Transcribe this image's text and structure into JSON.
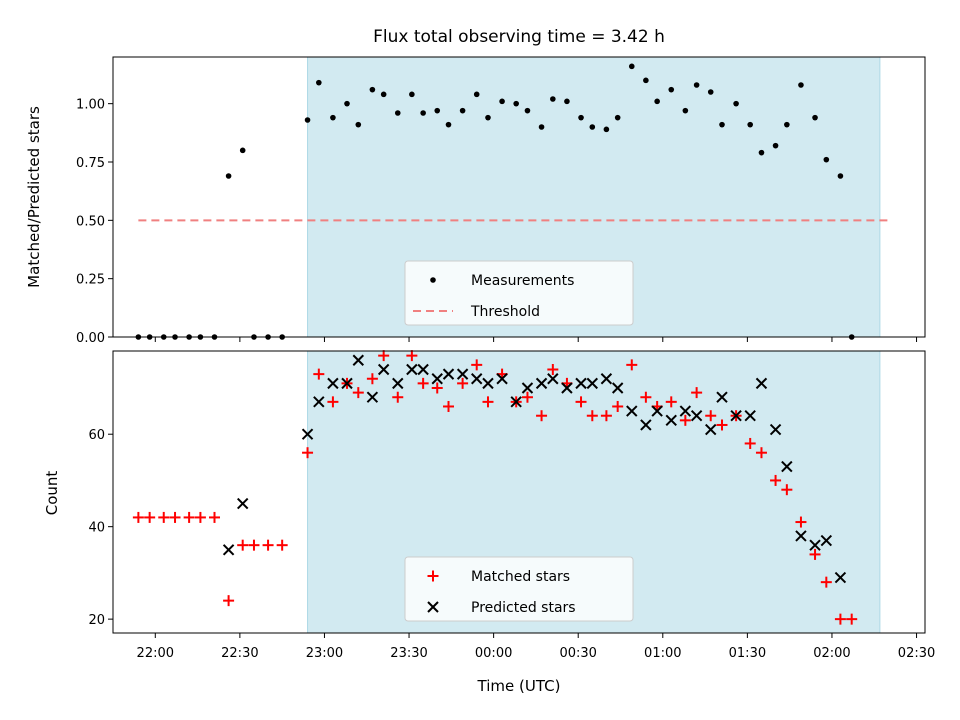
{
  "chart_data": [
    {
      "type": "scatter",
      "title": "Flux total observing time = 3.42 h",
      "xlabel": "",
      "ylabel": "Matched/Predicted stars",
      "xlim": [
        "21:45",
        "02:33"
      ],
      "ylim": [
        0,
        1.2
      ],
      "yticks": [
        "0.00",
        "0.25",
        "0.50",
        "0.75",
        "1.00"
      ],
      "shaded_region": [
        "22:54",
        "02:17"
      ],
      "shade_color": "#add8e6",
      "legend_position": "lower-center",
      "series": [
        {
          "name": "Measurements",
          "marker": "dot",
          "color": "#000000",
          "points": [
            [
              "21:54",
              0
            ],
            [
              "21:58",
              0
            ],
            [
              "22:03",
              0
            ],
            [
              "22:07",
              0
            ],
            [
              "22:12",
              0
            ],
            [
              "22:16",
              0
            ],
            [
              "22:21",
              0
            ],
            [
              "22:26",
              0.69
            ],
            [
              "22:31",
              0.8
            ],
            [
              "22:35",
              0
            ],
            [
              "22:40",
              0
            ],
            [
              "22:45",
              0
            ],
            [
              "22:54",
              0.93
            ],
            [
              "22:58",
              1.09
            ],
            [
              "23:03",
              0.94
            ],
            [
              "23:08",
              1.0
            ],
            [
              "23:12",
              0.91
            ],
            [
              "23:17",
              1.06
            ],
            [
              "23:21",
              1.04
            ],
            [
              "23:26",
              0.96
            ],
            [
              "23:31",
              1.04
            ],
            [
              "23:35",
              0.96
            ],
            [
              "23:40",
              0.97
            ],
            [
              "23:44",
              0.91
            ],
            [
              "23:49",
              0.97
            ],
            [
              "23:54",
              1.04
            ],
            [
              "23:58",
              0.94
            ],
            [
              "00:03",
              1.01
            ],
            [
              "00:08",
              1.0
            ],
            [
              "00:12",
              0.97
            ],
            [
              "00:17",
              0.9
            ],
            [
              "00:21",
              1.02
            ],
            [
              "00:26",
              1.01
            ],
            [
              "00:31",
              0.94
            ],
            [
              "00:35",
              0.9
            ],
            [
              "00:40",
              0.89
            ],
            [
              "00:44",
              0.94
            ],
            [
              "00:49",
              1.16
            ],
            [
              "00:54",
              1.1
            ],
            [
              "00:58",
              1.01
            ],
            [
              "01:03",
              1.06
            ],
            [
              "01:08",
              0.97
            ],
            [
              "01:12",
              1.08
            ],
            [
              "01:17",
              1.05
            ],
            [
              "01:21",
              0.91
            ],
            [
              "01:26",
              1.0
            ],
            [
              "01:31",
              0.91
            ],
            [
              "01:35",
              0.79
            ],
            [
              "01:40",
              0.82
            ],
            [
              "01:44",
              0.91
            ],
            [
              "01:49",
              1.08
            ],
            [
              "01:54",
              0.94
            ],
            [
              "01:58",
              0.76
            ],
            [
              "02:03",
              0.69
            ],
            [
              "02:07",
              0
            ]
          ]
        },
        {
          "name": "Threshold",
          "marker": "dashed-line",
          "color": "#f08080",
          "points": [
            [
              "21:54",
              0.5
            ],
            [
              "02:21",
              0.5
            ]
          ]
        }
      ]
    },
    {
      "type": "scatter",
      "title": "",
      "xlabel": "Time (UTC)",
      "ylabel": "Count",
      "xlim": [
        "21:45",
        "02:33"
      ],
      "ylim": [
        17,
        78
      ],
      "xticks": [
        "22:00",
        "22:30",
        "23:00",
        "23:30",
        "00:00",
        "00:30",
        "01:00",
        "01:30",
        "02:00",
        "02:30"
      ],
      "yticks": [
        "20",
        "40",
        "60"
      ],
      "shaded_region": [
        "22:54",
        "02:17"
      ],
      "shade_color": "#add8e6",
      "legend_position": "lower-center",
      "series": [
        {
          "name": "Matched stars",
          "marker": "plus",
          "color": "#ff0000",
          "points": [
            [
              "21:54",
              42
            ],
            [
              "21:58",
              42
            ],
            [
              "22:03",
              42
            ],
            [
              "22:07",
              42
            ],
            [
              "22:12",
              42
            ],
            [
              "22:16",
              42
            ],
            [
              "22:21",
              42
            ],
            [
              "22:26",
              24
            ],
            [
              "22:31",
              36
            ],
            [
              "22:35",
              36
            ],
            [
              "22:40",
              36
            ],
            [
              "22:45",
              36
            ],
            [
              "22:54",
              56
            ],
            [
              "22:58",
              73
            ],
            [
              "23:03",
              67
            ],
            [
              "23:08",
              71
            ],
            [
              "23:12",
              69
            ],
            [
              "23:17",
              72
            ],
            [
              "23:21",
              77
            ],
            [
              "23:26",
              68
            ],
            [
              "23:31",
              77
            ],
            [
              "23:35",
              71
            ],
            [
              "23:40",
              70
            ],
            [
              "23:44",
              66
            ],
            [
              "23:49",
              71
            ],
            [
              "23:54",
              75
            ],
            [
              "23:58",
              67
            ],
            [
              "00:03",
              73
            ],
            [
              "00:08",
              67
            ],
            [
              "00:12",
              68
            ],
            [
              "00:17",
              64
            ],
            [
              "00:21",
              74
            ],
            [
              "00:26",
              71
            ],
            [
              "00:31",
              67
            ],
            [
              "00:35",
              64
            ],
            [
              "00:40",
              64
            ],
            [
              "00:44",
              66
            ],
            [
              "00:49",
              75
            ],
            [
              "00:54",
              68
            ],
            [
              "00:58",
              66
            ],
            [
              "01:03",
              67
            ],
            [
              "01:08",
              63
            ],
            [
              "01:12",
              69
            ],
            [
              "01:17",
              64
            ],
            [
              "01:21",
              62
            ],
            [
              "01:26",
              64
            ],
            [
              "01:31",
              58
            ],
            [
              "01:35",
              56
            ],
            [
              "01:40",
              50
            ],
            [
              "01:44",
              48
            ],
            [
              "01:49",
              41
            ],
            [
              "01:54",
              34
            ],
            [
              "01:58",
              28
            ],
            [
              "02:03",
              20
            ],
            [
              "02:07",
              20
            ]
          ]
        },
        {
          "name": "Predicted stars",
          "marker": "x",
          "color": "#000000",
          "points": [
            [
              "22:26",
              35
            ],
            [
              "22:31",
              45
            ],
            [
              "22:54",
              60
            ],
            [
              "22:58",
              67
            ],
            [
              "23:03",
              71
            ],
            [
              "23:08",
              71
            ],
            [
              "23:12",
              76
            ],
            [
              "23:17",
              68
            ],
            [
              "23:21",
              74
            ],
            [
              "23:26",
              71
            ],
            [
              "23:31",
              74
            ],
            [
              "23:35",
              74
            ],
            [
              "23:40",
              72
            ],
            [
              "23:44",
              73
            ],
            [
              "23:49",
              73
            ],
            [
              "23:54",
              72
            ],
            [
              "23:58",
              71
            ],
            [
              "00:03",
              72
            ],
            [
              "00:08",
              67
            ],
            [
              "00:12",
              70
            ],
            [
              "00:17",
              71
            ],
            [
              "00:21",
              72
            ],
            [
              "00:26",
              70
            ],
            [
              "00:31",
              71
            ],
            [
              "00:35",
              71
            ],
            [
              "00:40",
              72
            ],
            [
              "00:44",
              70
            ],
            [
              "00:49",
              65
            ],
            [
              "00:54",
              62
            ],
            [
              "00:58",
              65
            ],
            [
              "01:03",
              63
            ],
            [
              "01:08",
              65
            ],
            [
              "01:12",
              64
            ],
            [
              "01:17",
              61
            ],
            [
              "01:21",
              68
            ],
            [
              "01:26",
              64
            ],
            [
              "01:31",
              64
            ],
            [
              "01:35",
              71
            ],
            [
              "01:40",
              61
            ],
            [
              "01:44",
              53
            ],
            [
              "01:49",
              38
            ],
            [
              "01:54",
              36
            ],
            [
              "01:58",
              37
            ],
            [
              "02:03",
              29
            ]
          ]
        }
      ]
    }
  ]
}
